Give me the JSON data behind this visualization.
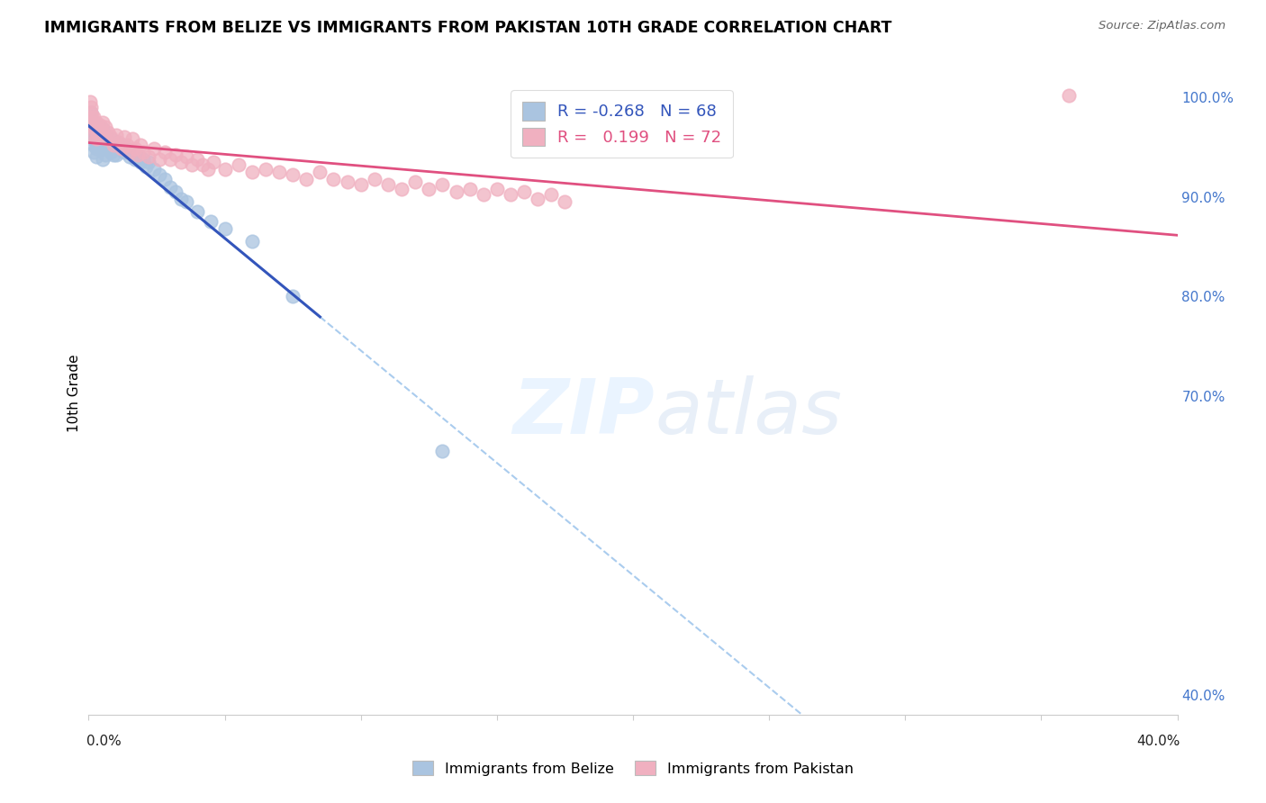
{
  "title": "IMMIGRANTS FROM BELIZE VS IMMIGRANTS FROM PAKISTAN 10TH GRADE CORRELATION CHART",
  "source": "Source: ZipAtlas.com",
  "ylabel": "10th Grade",
  "right_yticks": [
    "100.0%",
    "90.0%",
    "80.0%",
    "70.0%",
    "40.0%"
  ],
  "right_ytick_vals": [
    1.0,
    0.9,
    0.8,
    0.7,
    0.4
  ],
  "legend_belize": "Immigrants from Belize",
  "legend_pakistan": "Immigrants from Pakistan",
  "R_belize": "-0.268",
  "N_belize": "68",
  "R_pakistan": "0.199",
  "N_pakistan": "72",
  "belize_color": "#aac4e0",
  "pakistan_color": "#f0b0c0",
  "belize_fill": "#aac4e0",
  "pakistan_fill": "#f0b0c0",
  "belize_line_color": "#3355bb",
  "pakistan_line_color": "#e05080",
  "xmin": 0.0,
  "xmax": 0.4,
  "ymin": 0.38,
  "ymax": 1.025,
  "belize_x": [
    0.0005,
    0.0005,
    0.0008,
    0.001,
    0.001,
    0.001,
    0.0012,
    0.0012,
    0.0015,
    0.0015,
    0.0015,
    0.002,
    0.002,
    0.002,
    0.002,
    0.002,
    0.0025,
    0.0025,
    0.003,
    0.003,
    0.003,
    0.003,
    0.003,
    0.0035,
    0.004,
    0.004,
    0.004,
    0.0045,
    0.005,
    0.005,
    0.005,
    0.005,
    0.006,
    0.006,
    0.006,
    0.007,
    0.007,
    0.008,
    0.008,
    0.009,
    0.009,
    0.01,
    0.01,
    0.011,
    0.012,
    0.013,
    0.014,
    0.015,
    0.016,
    0.017,
    0.018,
    0.019,
    0.02,
    0.021,
    0.022,
    0.024,
    0.026,
    0.028,
    0.03,
    0.032,
    0.034,
    0.036,
    0.04,
    0.045,
    0.05,
    0.06,
    0.075,
    0.13
  ],
  "belize_y": [
    0.975,
    0.97,
    0.965,
    0.985,
    0.975,
    0.965,
    0.97,
    0.96,
    0.975,
    0.968,
    0.96,
    0.975,
    0.968,
    0.96,
    0.952,
    0.945,
    0.97,
    0.955,
    0.97,
    0.962,
    0.955,
    0.948,
    0.94,
    0.965,
    0.97,
    0.96,
    0.95,
    0.962,
    0.968,
    0.958,
    0.948,
    0.938,
    0.96,
    0.95,
    0.942,
    0.958,
    0.948,
    0.958,
    0.945,
    0.955,
    0.942,
    0.955,
    0.942,
    0.948,
    0.952,
    0.945,
    0.948,
    0.94,
    0.945,
    0.938,
    0.942,
    0.935,
    0.938,
    0.93,
    0.935,
    0.928,
    0.922,
    0.918,
    0.91,
    0.905,
    0.898,
    0.895,
    0.885,
    0.875,
    0.868,
    0.855,
    0.8,
    0.645
  ],
  "pakistan_x": [
    0.0005,
    0.0008,
    0.001,
    0.001,
    0.0012,
    0.0015,
    0.002,
    0.002,
    0.002,
    0.003,
    0.003,
    0.003,
    0.004,
    0.004,
    0.005,
    0.005,
    0.006,
    0.006,
    0.007,
    0.008,
    0.009,
    0.01,
    0.011,
    0.012,
    0.013,
    0.014,
    0.015,
    0.016,
    0.017,
    0.018,
    0.019,
    0.02,
    0.022,
    0.024,
    0.026,
    0.028,
    0.03,
    0.032,
    0.034,
    0.036,
    0.038,
    0.04,
    0.042,
    0.044,
    0.046,
    0.05,
    0.055,
    0.06,
    0.065,
    0.07,
    0.075,
    0.08,
    0.085,
    0.09,
    0.095,
    0.1,
    0.105,
    0.11,
    0.115,
    0.12,
    0.125,
    0.13,
    0.135,
    0.14,
    0.145,
    0.15,
    0.155,
    0.16,
    0.165,
    0.17,
    0.175,
    0.36
  ],
  "pakistan_y": [
    0.995,
    0.99,
    0.985,
    0.975,
    0.98,
    0.97,
    0.98,
    0.97,
    0.96,
    0.975,
    0.965,
    0.958,
    0.972,
    0.962,
    0.975,
    0.965,
    0.97,
    0.958,
    0.965,
    0.96,
    0.952,
    0.962,
    0.955,
    0.948,
    0.96,
    0.952,
    0.945,
    0.958,
    0.948,
    0.942,
    0.952,
    0.945,
    0.94,
    0.948,
    0.938,
    0.945,
    0.938,
    0.942,
    0.935,
    0.94,
    0.932,
    0.938,
    0.932,
    0.928,
    0.935,
    0.928,
    0.932,
    0.925,
    0.928,
    0.925,
    0.922,
    0.918,
    0.925,
    0.918,
    0.915,
    0.912,
    0.918,
    0.912,
    0.908,
    0.915,
    0.908,
    0.912,
    0.905,
    0.908,
    0.902,
    0.908,
    0.902,
    0.905,
    0.898,
    0.902,
    0.895,
    1.002
  ]
}
